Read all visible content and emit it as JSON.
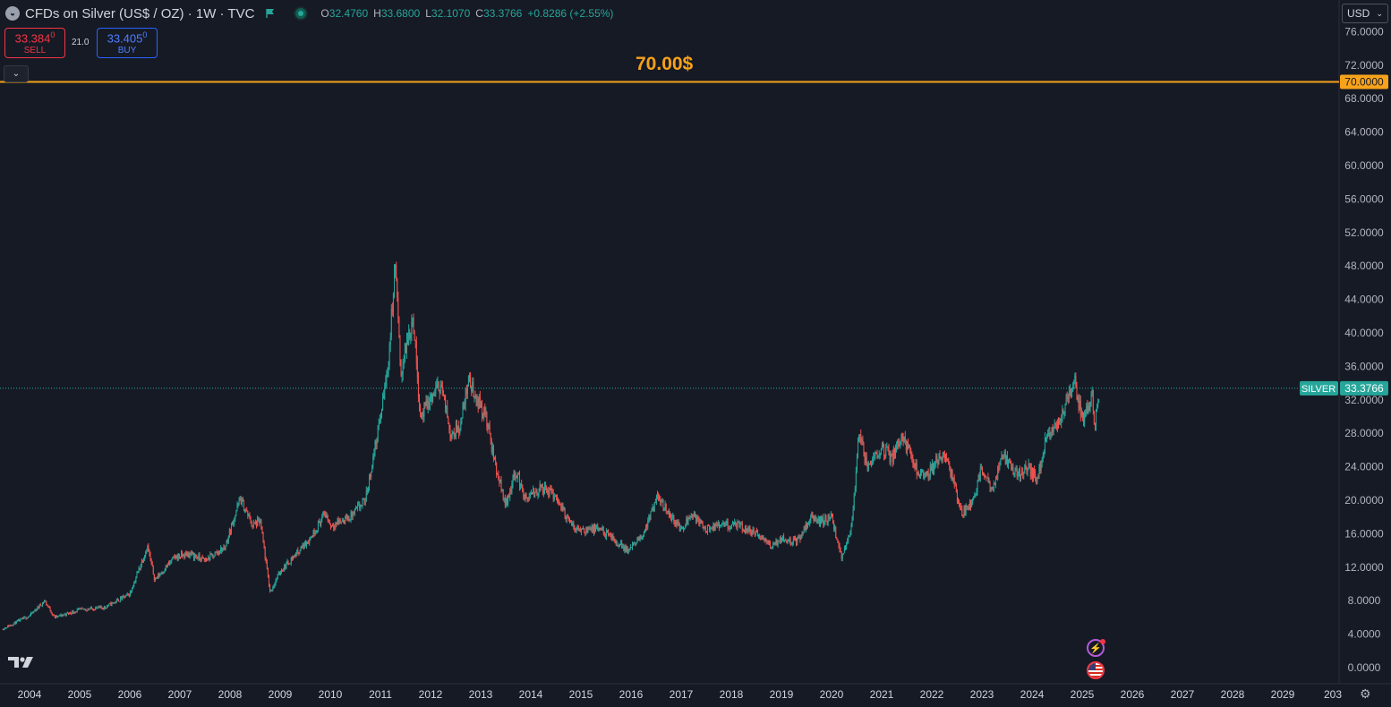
{
  "header": {
    "title": "CFDs on Silver (US$ / OZ) · 1W · TVC",
    "ohlc": {
      "o_label": "O",
      "o": "32.4760",
      "h_label": "H",
      "h": "33.6800",
      "l_label": "L",
      "l": "32.1070",
      "c_label": "C",
      "c": "33.3766",
      "change": "+0.8286 (+2.55%)"
    }
  },
  "trade": {
    "sell_price": "33.384",
    "sell_sup": "0",
    "sell_label": "SELL",
    "spread": "21.0",
    "buy_price": "33.405",
    "buy_sup": "0",
    "buy_label": "BUY"
  },
  "currency": {
    "label": "USD"
  },
  "horizontal_line": {
    "label": "70.00$",
    "price": 70,
    "axis_label": "70.0000",
    "color": "#f7a21b"
  },
  "last_price": {
    "symbol": "SILVER",
    "value": "33.3766",
    "price": 33.3766,
    "color": "#26a69a"
  },
  "icons": {
    "collapse": "chevron-down-icon",
    "events": [
      "lightning-event-icon",
      "us-flag-event-icon"
    ],
    "settings": "gear-icon",
    "logo": "tradingview-logo-icon"
  },
  "chart_data": {
    "type": "candlestick",
    "interval": "1W",
    "ylim": [
      -1,
      77
    ],
    "y_ticks": [
      0,
      4,
      8,
      12,
      16,
      20,
      24,
      28,
      32,
      36,
      40,
      44,
      48,
      52,
      56,
      60,
      64,
      68,
      72,
      76
    ],
    "y_tick_labels": [
      "0.0000",
      "4.0000",
      "8.0000",
      "12.0000",
      "16.0000",
      "20.0000",
      "24.0000",
      "28.0000",
      "32.0000",
      "36.0000",
      "40.0000",
      "44.0000",
      "48.0000",
      "52.0000",
      "56.0000",
      "60.0000",
      "64.0000",
      "68.0000",
      "72.0000",
      "76.0000"
    ],
    "x_tick_labels": [
      "2004",
      "2005",
      "2006",
      "2007",
      "2008",
      "2009",
      "2010",
      "2011",
      "2012",
      "2013",
      "2014",
      "2015",
      "2016",
      "2017",
      "2018",
      "2019",
      "2020",
      "2021",
      "2022",
      "2023",
      "2024",
      "2025",
      "2026",
      "2027",
      "2028",
      "2029",
      "203"
    ],
    "up_color": "#26a69a",
    "down_color": "#ef5350",
    "price_path": [
      [
        2003.45,
        4.6
      ],
      [
        2004.0,
        6.2
      ],
      [
        2004.3,
        8.0
      ],
      [
        2004.5,
        6.0
      ],
      [
        2005.0,
        6.9
      ],
      [
        2005.5,
        7.2
      ],
      [
        2006.0,
        8.8
      ],
      [
        2006.35,
        14.5
      ],
      [
        2006.5,
        10.5
      ],
      [
        2006.9,
        13.2
      ],
      [
        2007.2,
        13.6
      ],
      [
        2007.5,
        12.8
      ],
      [
        2007.9,
        14.4
      ],
      [
        2008.2,
        20.2
      ],
      [
        2008.45,
        17.0
      ],
      [
        2008.6,
        17.5
      ],
      [
        2008.8,
        9.0
      ],
      [
        2009.0,
        11.5
      ],
      [
        2009.3,
        13.5
      ],
      [
        2009.6,
        15.5
      ],
      [
        2009.9,
        18.5
      ],
      [
        2010.0,
        17.0
      ],
      [
        2010.4,
        18.0
      ],
      [
        2010.7,
        20.0
      ],
      [
        2011.0,
        30.0
      ],
      [
        2011.15,
        36.0
      ],
      [
        2011.3,
        48.5
      ],
      [
        2011.4,
        35.0
      ],
      [
        2011.5,
        38.0
      ],
      [
        2011.65,
        42.0
      ],
      [
        2011.8,
        30.0
      ],
      [
        2012.0,
        32.0
      ],
      [
        2012.2,
        34.0
      ],
      [
        2012.4,
        28.0
      ],
      [
        2012.6,
        29.0
      ],
      [
        2012.75,
        34.5
      ],
      [
        2012.9,
        32.5
      ],
      [
        2013.1,
        30.0
      ],
      [
        2013.3,
        24.0
      ],
      [
        2013.5,
        19.5
      ],
      [
        2013.7,
        23.5
      ],
      [
        2013.9,
        20.0
      ],
      [
        2014.2,
        21.5
      ],
      [
        2014.5,
        20.5
      ],
      [
        2014.8,
        17.0
      ],
      [
        2015.0,
        16.5
      ],
      [
        2015.4,
        16.5
      ],
      [
        2015.7,
        15.0
      ],
      [
        2015.95,
        14.0
      ],
      [
        2016.2,
        15.5
      ],
      [
        2016.55,
        20.5
      ],
      [
        2016.8,
        18.0
      ],
      [
        2017.0,
        16.5
      ],
      [
        2017.2,
        18.5
      ],
      [
        2017.5,
        16.5
      ],
      [
        2017.8,
        17.0
      ],
      [
        2018.1,
        17.0
      ],
      [
        2018.5,
        16.0
      ],
      [
        2018.8,
        14.5
      ],
      [
        2019.0,
        15.5
      ],
      [
        2019.3,
        15.0
      ],
      [
        2019.6,
        18.0
      ],
      [
        2019.8,
        17.5
      ],
      [
        2020.0,
        18.0
      ],
      [
        2020.2,
        13.0
      ],
      [
        2020.4,
        17.0
      ],
      [
        2020.55,
        28.0
      ],
      [
        2020.7,
        24.0
      ],
      [
        2021.0,
        26.5
      ],
      [
        2021.2,
        25.0
      ],
      [
        2021.4,
        28.0
      ],
      [
        2021.7,
        23.5
      ],
      [
        2021.9,
        23.0
      ],
      [
        2022.2,
        25.5
      ],
      [
        2022.35,
        24.0
      ],
      [
        2022.6,
        18.5
      ],
      [
        2022.8,
        19.5
      ],
      [
        2023.0,
        24.0
      ],
      [
        2023.2,
        21.0
      ],
      [
        2023.4,
        25.5
      ],
      [
        2023.7,
        23.0
      ],
      [
        2023.9,
        24.0
      ],
      [
        2024.1,
        22.5
      ],
      [
        2024.3,
        28.0
      ],
      [
        2024.5,
        29.0
      ],
      [
        2024.75,
        32.5
      ],
      [
        2024.85,
        34.0
      ],
      [
        2025.0,
        29.5
      ],
      [
        2025.2,
        32.5
      ],
      [
        2025.25,
        29.0
      ],
      [
        2025.35,
        33.3766
      ]
    ]
  }
}
